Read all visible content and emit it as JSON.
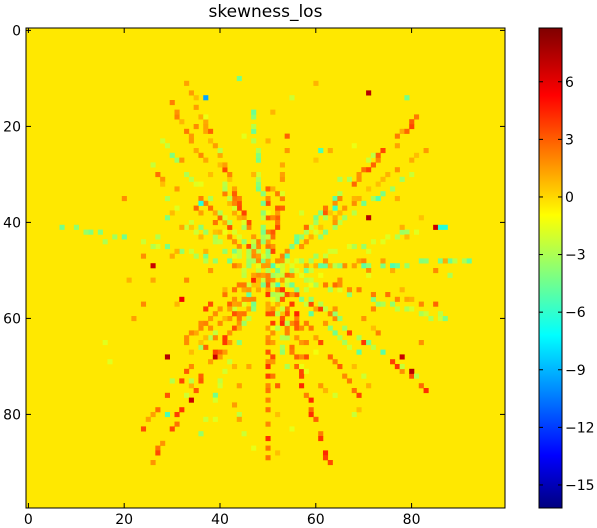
{
  "chart_data": {
    "type": "heatmap",
    "title": "skewness_los",
    "xlabel": "",
    "ylabel": "",
    "grid": false,
    "colormap": "jet",
    "x_range": [
      -0.5,
      99.5
    ],
    "y_range": [
      -0.5,
      99.5
    ],
    "y_inverted": true,
    "background_value": 0.0,
    "x_ticks": [
      0,
      20,
      40,
      60,
      80
    ],
    "y_ticks": [
      0,
      20,
      40,
      60,
      80
    ],
    "colorbar": {
      "vmin": -16.2,
      "vmax": 8.8,
      "ticks": [
        6,
        3,
        0,
        -3,
        -6,
        -9,
        -12,
        -15
      ],
      "tick_labels": [
        "6",
        "3",
        "0",
        "−3",
        "−6",
        "−9",
        "−12",
        "−15"
      ]
    },
    "structure": "sparse radial streaks of nonzero skewness radiating from the image center (~50, 50) on a zero background",
    "center": [
      50,
      50
    ],
    "notable_points": [
      {
        "x": 37,
        "y": 14,
        "value": -9.0
      },
      {
        "x": 71,
        "y": 13,
        "value": 7.5
      },
      {
        "x": 61,
        "y": 25,
        "value": -5.0
      },
      {
        "x": 36,
        "y": 36,
        "value": -6.0
      },
      {
        "x": 71,
        "y": 39,
        "value": 7.5
      },
      {
        "x": 85,
        "y": 41,
        "value": 7.0
      },
      {
        "x": 86,
        "y": 41,
        "value": -6.0
      },
      {
        "x": 87,
        "y": 41,
        "value": -6.0
      },
      {
        "x": 26,
        "y": 49,
        "value": 7.0
      },
      {
        "x": 32,
        "y": 56,
        "value": 6.0
      },
      {
        "x": 29,
        "y": 68,
        "value": 7.5
      },
      {
        "x": 39,
        "y": 68,
        "value": 7.0
      },
      {
        "x": 78,
        "y": 68,
        "value": 7.0
      },
      {
        "x": 80,
        "y": 71,
        "value": 7.5
      },
      {
        "x": 34,
        "y": 77,
        "value": 7.0
      },
      {
        "x": 29,
        "y": 80,
        "value": -5.0
      },
      {
        "x": 52,
        "y": 53,
        "value": -5.0
      },
      {
        "x": 44,
        "y": 10,
        "value": -4.0
      },
      {
        "x": 79,
        "y": 14,
        "value": -4.0
      }
    ]
  }
}
